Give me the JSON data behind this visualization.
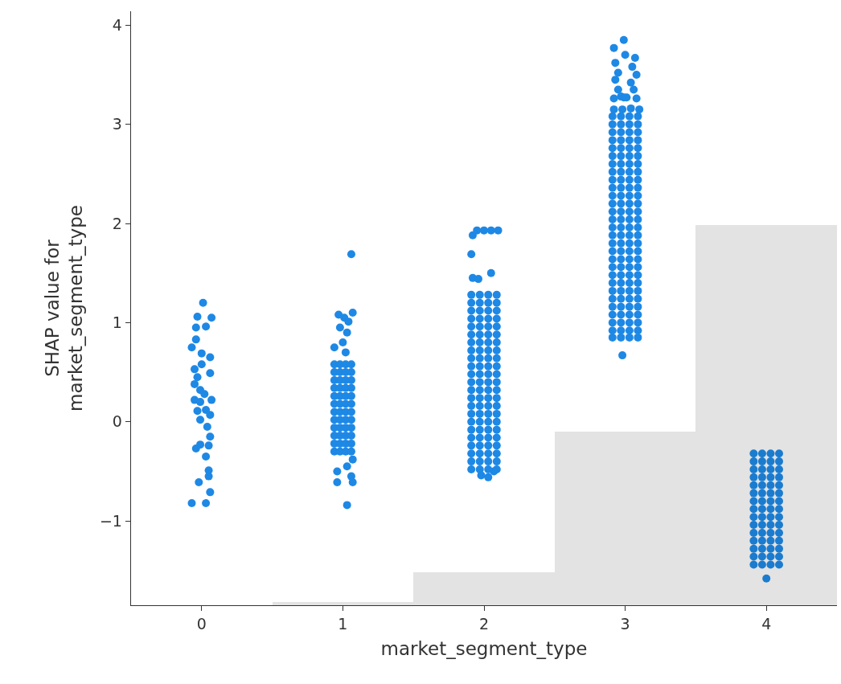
{
  "chart_data": {
    "type": "scatter",
    "xlabel": "market_segment_type",
    "ylabel": "SHAP value for\nmarket_segment_type",
    "xlim": [
      -0.5,
      4.5
    ],
    "xticks": [
      0,
      1,
      2,
      3,
      4
    ],
    "ylim": [
      -1.85,
      4.14
    ],
    "yticks": [
      {
        "value": -1,
        "label": "−1"
      },
      0,
      1,
      2,
      3,
      4
    ],
    "marker": "circle",
    "grid": false,
    "series": [
      {
        "type": "bar",
        "color": "#e3e3e3",
        "x": [
          1,
          2,
          3,
          4
        ],
        "base": [
          -1.85,
          -1.85,
          -1.85,
          -1.85
        ],
        "values": [
          0.03,
          0.33,
          1.75,
          3.83
        ]
      },
      {
        "color": "#1e88e5",
        "x": [
          0.01,
          -0.03,
          0.07,
          -0.04,
          0.03,
          -0.04,
          -0.07,
          0,
          0.06,
          -0.05,
          0,
          0.06,
          -0.03,
          -0.05,
          -0.01,
          0.02,
          -0.05,
          0.07,
          -0.01,
          -0.03,
          0.03,
          0.06,
          -0.01,
          0.04,
          0.06,
          -0.04,
          -0.01,
          0.05,
          0.03,
          0.05,
          0.05,
          -0.02,
          0.06,
          -0.07,
          0.03
        ],
        "values": [
          1.2,
          1.06,
          1.05,
          0.95,
          0.96,
          0.83,
          0.75,
          0.69,
          0.65,
          0.53,
          0.58,
          0.49,
          0.45,
          0.38,
          0.32,
          0.28,
          0.22,
          0.22,
          0.2,
          0.11,
          0.12,
          0.07,
          0.02,
          -0.05,
          -0.15,
          -0.27,
          -0.23,
          -0.24,
          -0.35,
          -0.49,
          -0.55,
          -0.61,
          -0.71,
          -0.82,
          -0.82
        ]
      },
      {
        "color": "#1e88e5",
        "x": [
          1.06,
          1.07,
          0.97,
          1.01,
          1.04,
          0.98,
          1.03,
          1,
          0.94,
          1.02,
          0.96,
          1.06,
          0.96,
          1.07,
          1.03,
          1.03,
          1.07,
          0.94,
          0.98,
          1.02,
          1.06,
          0.94,
          0.98,
          1.02,
          1.06,
          0.94,
          0.98,
          1.02,
          1.06,
          0.94,
          0.98,
          1.02,
          1.06,
          0.94,
          0.98,
          1.02,
          1.06,
          0.94,
          0.98,
          1.02,
          1.06,
          0.94,
          0.98,
          1.02,
          1.06,
          0.94,
          0.98,
          1.02,
          1.06,
          0.94,
          0.98,
          1.02,
          1.06,
          0.94,
          0.98,
          1.02,
          1.06,
          0.94,
          0.98,
          1.02,
          1.06,
          0.94,
          0.98,
          1.02,
          1.06
        ],
        "values": [
          1.69,
          1.1,
          1.08,
          1.05,
          1.01,
          0.95,
          0.9,
          0.8,
          0.75,
          0.7,
          -0.5,
          -0.55,
          -0.61,
          -0.61,
          -0.84,
          -0.45,
          -0.38,
          -0.3,
          -0.3,
          -0.3,
          -0.3,
          -0.22,
          -0.22,
          -0.22,
          -0.22,
          -0.14,
          -0.14,
          -0.14,
          -0.14,
          -0.06,
          -0.06,
          -0.06,
          -0.06,
          0.02,
          0.02,
          0.02,
          0.02,
          0.1,
          0.1,
          0.1,
          0.1,
          0.18,
          0.18,
          0.18,
          0.18,
          0.26,
          0.26,
          0.26,
          0.26,
          0.34,
          0.34,
          0.34,
          0.34,
          0.42,
          0.42,
          0.42,
          0.42,
          0.5,
          0.5,
          0.5,
          0.5,
          0.58,
          0.58,
          0.58,
          0.58
        ]
      },
      {
        "color": "#1e88e5",
        "x": [
          1.95,
          2.0,
          2.05,
          2.1,
          1.92,
          1.91,
          2.05,
          1.92,
          1.96,
          2.03,
          1.98,
          2.07,
          1.91,
          1.97,
          2.03,
          2.09,
          1.91,
          1.97,
          2.03,
          2.09,
          1.91,
          1.97,
          2.03,
          2.09,
          1.91,
          1.97,
          2.03,
          2.09,
          1.91,
          1.97,
          2.03,
          2.09,
          1.91,
          1.97,
          2.03,
          2.09,
          1.91,
          1.97,
          2.03,
          2.09,
          1.91,
          1.97,
          2.03,
          2.09,
          1.91,
          1.97,
          2.03,
          2.09,
          1.91,
          1.97,
          2.03,
          2.09,
          1.91,
          1.97,
          2.03,
          2.09,
          1.91,
          1.97,
          2.03,
          2.09,
          1.91,
          1.97,
          2.03,
          2.09,
          1.91,
          1.97,
          2.03,
          2.09,
          1.91,
          1.97,
          2.03,
          2.09,
          1.91,
          1.97,
          2.03,
          2.09,
          1.91,
          1.97,
          2.03,
          2.09,
          1.91,
          1.97,
          2.03,
          2.09,
          1.91,
          1.97,
          2.03,
          2.09,
          1.91,
          1.97,
          2.03,
          2.09,
          1.91,
          1.97,
          2.03,
          2.09,
          1.91,
          1.97,
          2.03,
          2.09,
          1.91,
          1.97,
          2.03,
          2.09
        ],
        "values": [
          1.93,
          1.93,
          1.93,
          1.93,
          1.88,
          1.69,
          1.5,
          1.45,
          1.44,
          -0.56,
          -0.54,
          -0.5,
          -0.48,
          -0.48,
          -0.48,
          -0.48,
          -0.4,
          -0.4,
          -0.4,
          -0.4,
          -0.32,
          -0.32,
          -0.32,
          -0.32,
          -0.24,
          -0.24,
          -0.24,
          -0.24,
          -0.16,
          -0.16,
          -0.16,
          -0.16,
          -0.08,
          -0.08,
          -0.08,
          -0.08,
          0,
          0,
          0,
          0,
          0.08,
          0.08,
          0.08,
          0.08,
          0.16,
          0.16,
          0.16,
          0.16,
          0.24,
          0.24,
          0.24,
          0.24,
          0.32,
          0.32,
          0.32,
          0.32,
          0.4,
          0.4,
          0.4,
          0.4,
          0.48,
          0.48,
          0.48,
          0.48,
          0.56,
          0.56,
          0.56,
          0.56,
          0.64,
          0.64,
          0.64,
          0.64,
          0.72,
          0.72,
          0.72,
          0.72,
          0.8,
          0.8,
          0.8,
          0.8,
          0.88,
          0.88,
          0.88,
          0.88,
          0.96,
          0.96,
          0.96,
          0.96,
          1.04,
          1.04,
          1.04,
          1.04,
          1.12,
          1.12,
          1.12,
          1.12,
          1.2,
          1.2,
          1.2,
          1.2,
          1.28,
          1.28,
          1.28,
          1.28
        ]
      },
      {
        "color": "#1e88e5",
        "x": [
          2.99,
          2.92,
          3.0,
          3.07,
          2.93,
          3.05,
          2.95,
          3.08,
          2.93,
          3.04,
          2.95,
          3.06,
          2.97,
          2.99,
          2.92,
          3.01,
          3.08,
          2.92,
          2.98,
          3.04,
          3.1,
          2.98,
          2.91,
          2.97,
          3.03,
          3.09,
          2.91,
          2.97,
          3.03,
          3.09,
          2.91,
          2.97,
          3.03,
          3.09,
          2.91,
          2.97,
          3.03,
          3.09,
          2.91,
          2.97,
          3.03,
          3.09,
          2.91,
          2.97,
          3.03,
          3.09,
          2.91,
          2.97,
          3.03,
          3.09,
          2.91,
          2.97,
          3.03,
          3.09,
          2.91,
          2.97,
          3.03,
          3.09,
          2.91,
          2.97,
          3.03,
          3.09,
          2.91,
          2.97,
          3.03,
          3.09,
          2.91,
          2.97,
          3.03,
          3.09,
          2.91,
          2.97,
          3.03,
          3.09,
          2.91,
          2.97,
          3.03,
          3.09,
          2.91,
          2.97,
          3.03,
          3.09,
          2.91,
          2.97,
          3.03,
          3.09,
          2.91,
          2.97,
          3.03,
          3.09,
          2.91,
          2.97,
          3.03,
          3.09,
          2.91,
          2.97,
          3.03,
          3.09,
          2.91,
          2.97,
          3.03,
          3.09,
          2.91,
          2.97,
          3.03,
          3.09,
          2.91,
          2.97,
          3.03,
          3.09,
          2.91,
          2.97,
          3.03,
          3.09,
          2.91,
          2.97,
          3.03,
          3.09,
          2.91,
          2.97,
          3.03,
          3.09,
          2.91,
          2.97,
          3.03,
          3.09,
          2.91,
          2.97,
          3.03,
          3.09,
          2.91,
          2.97,
          3.03,
          3.09,
          2.91,
          2.97,
          3.03,
          3.09
        ],
        "values": [
          3.85,
          3.77,
          3.7,
          3.67,
          3.62,
          3.58,
          3.52,
          3.5,
          3.45,
          3.42,
          3.35,
          3.35,
          3.28,
          3.27,
          3.26,
          3.27,
          3.26,
          3.15,
          3.15,
          3.16,
          3.15,
          0.67,
          0.85,
          0.85,
          0.85,
          0.85,
          0.92,
          0.92,
          0.92,
          0.92,
          1.0,
          1.0,
          1.0,
          1.0,
          1.08,
          1.08,
          1.08,
          1.08,
          1.16,
          1.16,
          1.16,
          1.16,
          1.24,
          1.24,
          1.24,
          1.24,
          1.32,
          1.32,
          1.32,
          1.32,
          1.4,
          1.4,
          1.4,
          1.4,
          1.48,
          1.48,
          1.48,
          1.48,
          1.56,
          1.56,
          1.56,
          1.56,
          1.64,
          1.64,
          1.64,
          1.64,
          1.72,
          1.72,
          1.72,
          1.72,
          1.8,
          1.8,
          1.8,
          1.8,
          1.88,
          1.88,
          1.88,
          1.88,
          1.96,
          1.96,
          1.96,
          1.96,
          2.04,
          2.04,
          2.04,
          2.04,
          2.12,
          2.12,
          2.12,
          2.12,
          2.2,
          2.2,
          2.2,
          2.2,
          2.28,
          2.28,
          2.28,
          2.28,
          2.36,
          2.36,
          2.36,
          2.36,
          2.44,
          2.44,
          2.44,
          2.44,
          2.52,
          2.52,
          2.52,
          2.52,
          2.6,
          2.6,
          2.6,
          2.6,
          2.68,
          2.68,
          2.68,
          2.68,
          2.76,
          2.76,
          2.76,
          2.76,
          2.84,
          2.84,
          2.84,
          2.84,
          2.92,
          2.92,
          2.92,
          2.92,
          3.0,
          3.0,
          3.0,
          3.0,
          3.08,
          3.08,
          3.08,
          3.08
        ]
      },
      {
        "color": "#1b7ccf",
        "x": [
          4.0,
          3.91,
          3.97,
          4.03,
          4.09,
          3.91,
          3.97,
          4.03,
          4.09,
          3.91,
          3.97,
          4.03,
          4.09,
          3.91,
          3.97,
          4.03,
          4.09,
          3.91,
          3.97,
          4.03,
          4.09,
          3.91,
          3.97,
          4.03,
          4.09,
          3.91,
          3.97,
          4.03,
          4.09,
          3.91,
          3.97,
          4.03,
          4.09,
          3.91,
          3.97,
          4.03,
          4.09,
          3.91,
          3.97,
          4.03,
          4.09,
          3.91,
          3.97,
          4.03,
          4.09,
          3.91,
          3.97,
          4.03,
          4.09,
          3.91,
          3.97,
          4.03,
          4.09,
          3.91,
          3.97,
          4.03,
          4.09,
          3.91,
          3.97,
          4.03,
          4.09
        ],
        "values": [
          -1.58,
          -1.44,
          -1.44,
          -1.44,
          -1.44,
          -1.36,
          -1.36,
          -1.36,
          -1.36,
          -1.28,
          -1.28,
          -1.28,
          -1.28,
          -1.2,
          -1.2,
          -1.2,
          -1.2,
          -1.12,
          -1.12,
          -1.12,
          -1.12,
          -1.04,
          -1.04,
          -1.04,
          -1.04,
          -0.96,
          -0.96,
          -0.96,
          -0.96,
          -0.88,
          -0.88,
          -0.88,
          -0.88,
          -0.8,
          -0.8,
          -0.8,
          -0.8,
          -0.72,
          -0.72,
          -0.72,
          -0.72,
          -0.64,
          -0.64,
          -0.64,
          -0.64,
          -0.56,
          -0.56,
          -0.56,
          -0.56,
          -0.48,
          -0.48,
          -0.48,
          -0.48,
          -0.4,
          -0.4,
          -0.4,
          -0.4,
          -0.32,
          -0.32,
          -0.32,
          -0.32
        ]
      }
    ]
  }
}
